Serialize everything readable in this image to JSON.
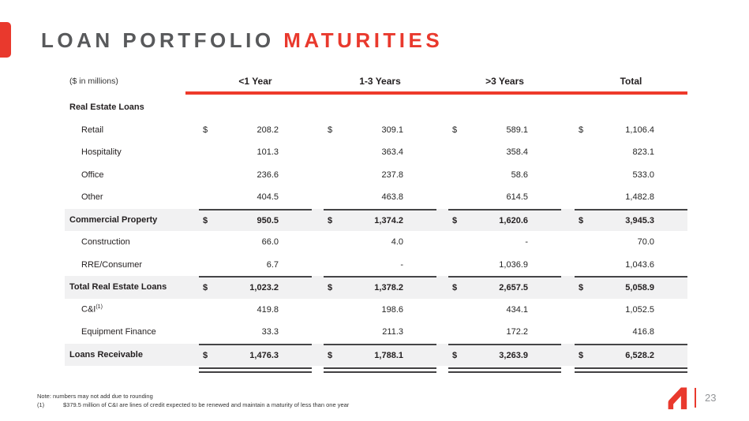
{
  "slide": {
    "title_gray": "LOAN PORTFOLIO ",
    "title_red": "MATURITIES",
    "page_number": "23"
  },
  "colors": {
    "accent_red": "#E9392D",
    "title_gray": "#58595B",
    "row_shade": "#F1F1F2",
    "rule_dark": "#414042"
  },
  "table": {
    "unit_label": "($ in millions)",
    "columns": [
      "<1 Year",
      "1-3 Years",
      ">3 Years",
      "Total"
    ],
    "rows": [
      {
        "label": "Real Estate Loans",
        "type": "section",
        "values": [
          "",
          "",
          "",
          ""
        ]
      },
      {
        "label": "Retail",
        "type": "data",
        "dollar": true,
        "values": [
          "208.2",
          "309.1",
          "589.1",
          "1,106.4"
        ]
      },
      {
        "label": "Hospitality",
        "type": "data",
        "values": [
          "101.3",
          "363.4",
          "358.4",
          "823.1"
        ]
      },
      {
        "label": "Office",
        "type": "data",
        "values": [
          "236.6",
          "237.8",
          "58.6",
          "533.0"
        ]
      },
      {
        "label": "Other",
        "type": "data",
        "values": [
          "404.5",
          "463.8",
          "614.5",
          "1,482.8"
        ]
      },
      {
        "label": "Commercial Property",
        "type": "subtotal",
        "dollar": true,
        "topline": true,
        "values": [
          "950.5",
          "1,374.2",
          "1,620.6",
          "3,945.3"
        ]
      },
      {
        "label": "Construction",
        "type": "data",
        "values": [
          "66.0",
          "4.0",
          "-",
          "70.0"
        ]
      },
      {
        "label": "RRE/Consumer",
        "type": "data",
        "values": [
          "6.7",
          "-",
          "1,036.9",
          "1,043.6"
        ]
      },
      {
        "label": "Total Real Estate Loans",
        "type": "subtotal",
        "dollar": true,
        "topline": true,
        "values": [
          "1,023.2",
          "1,378.2",
          "2,657.5",
          "5,058.9"
        ]
      },
      {
        "label": "C&I",
        "sup": "(1)",
        "type": "data",
        "values": [
          "419.8",
          "198.6",
          "434.1",
          "1,052.5"
        ]
      },
      {
        "label": "Equipment Finance",
        "type": "data",
        "values": [
          "33.3",
          "211.3",
          "172.2",
          "416.8"
        ]
      },
      {
        "label": "Loans Receivable",
        "type": "subtotal",
        "dollar": true,
        "topline": true,
        "double_bottom": true,
        "values": [
          "1,476.3",
          "1,788.1",
          "3,263.9",
          "6,528.2"
        ]
      }
    ]
  },
  "footnotes": {
    "note": "Note: numbers may not add due to rounding",
    "fn1_num": "(1)",
    "fn1_text": "$379.5 million of C&I are lines of credit expected to be renewed and maintain a maturity of less than one year"
  }
}
